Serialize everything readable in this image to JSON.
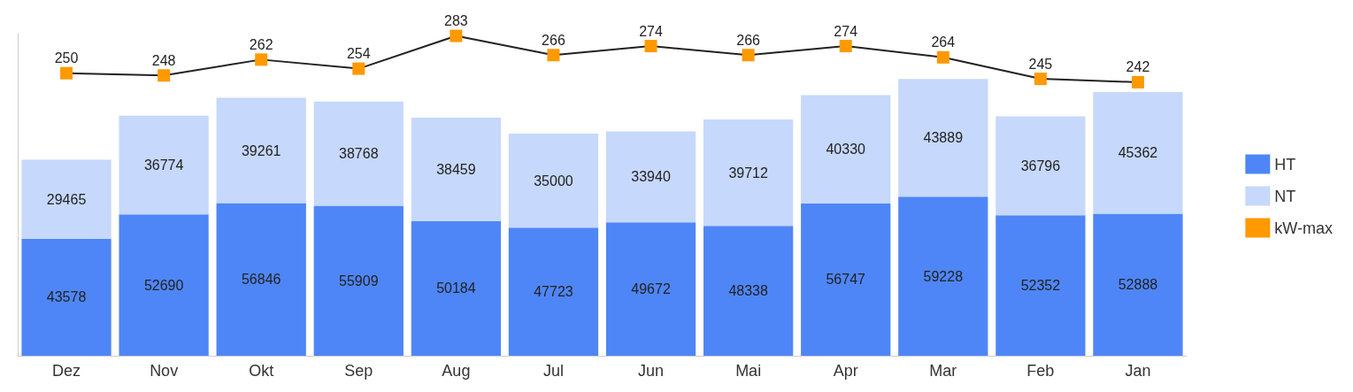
{
  "chart_data": {
    "type": "bar",
    "stacked": true,
    "categories": [
      "Dez",
      "Nov",
      "Okt",
      "Sep",
      "Aug",
      "Jul",
      "Jun",
      "Mai",
      "Apr",
      "Mar",
      "Feb",
      "Jan"
    ],
    "series": [
      {
        "name": "HT",
        "color": "#4f86f7",
        "values": [
          43578,
          52690,
          56846,
          55909,
          50184,
          47723,
          49672,
          48338,
          56747,
          59228,
          52352,
          52888
        ]
      },
      {
        "name": "NT",
        "color": "#c6d8fb",
        "values": [
          29465,
          36774,
          39261,
          38768,
          38459,
          35000,
          33940,
          39712,
          40330,
          43889,
          36796,
          45362
        ]
      },
      {
        "name": "kW-max",
        "type": "line",
        "axis": "y2",
        "color": "#ff9900",
        "values": [
          250,
          248,
          262,
          254,
          283,
          266,
          274,
          266,
          274,
          264,
          245,
          242
        ]
      }
    ],
    "ylim": [
      0,
      120000
    ],
    "y2lim": [
      0,
      285
    ],
    "tick_labels": "x",
    "data_labels": true,
    "legend": "right",
    "marker": "square",
    "grid": false
  }
}
